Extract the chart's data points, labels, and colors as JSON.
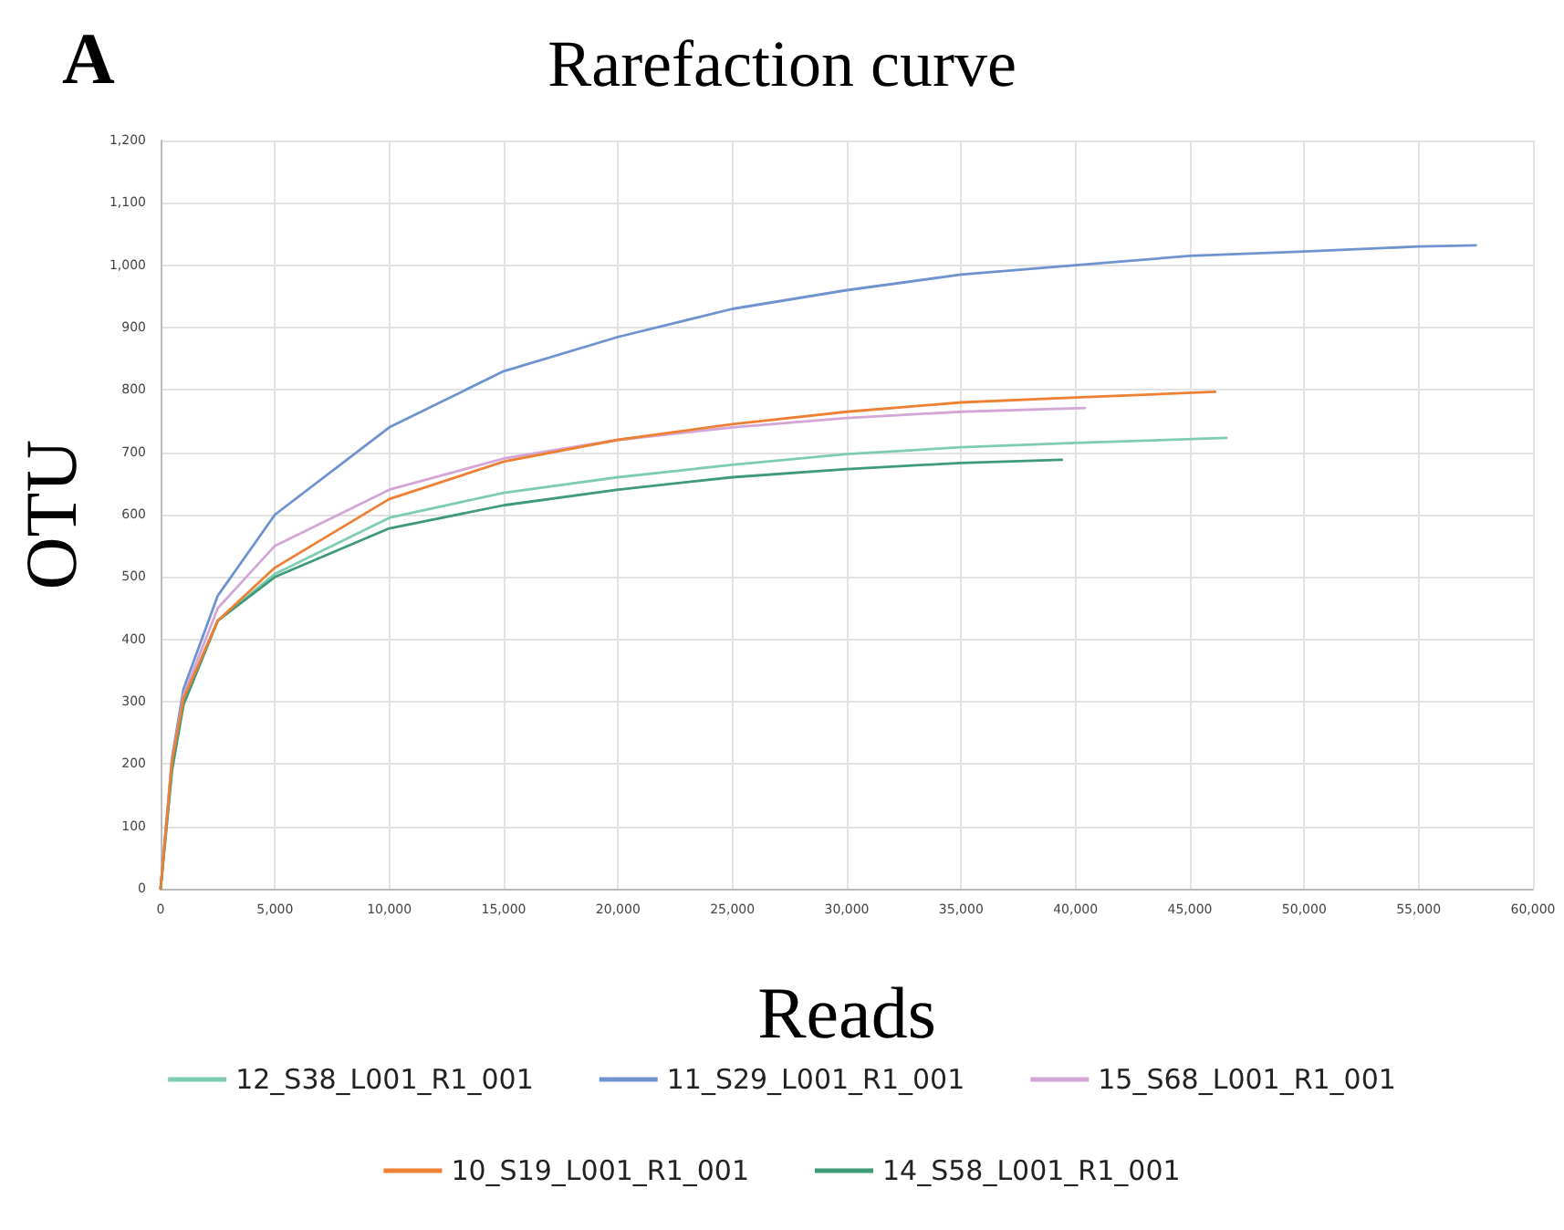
{
  "chart_data": {
    "type": "line",
    "title": "Rarefaction curve",
    "xlabel": "Reads",
    "ylabel": "OTU",
    "annotations": [
      "A"
    ],
    "xlim": [
      0,
      60000
    ],
    "xticks": [
      0,
      {
        "value": 5000,
        "label": "5,000"
      },
      {
        "value": 10000,
        "label": "10,000"
      },
      {
        "value": 15000,
        "label": "15,000"
      },
      {
        "value": 20000,
        "label": "20,000"
      },
      {
        "value": 25000,
        "label": "25,000"
      },
      {
        "value": 30000,
        "label": "30,000"
      },
      {
        "value": 35000,
        "label": "35,000"
      },
      {
        "value": 40000,
        "label": "40,000"
      },
      {
        "value": 45000,
        "label": "45,000"
      },
      {
        "value": 50000,
        "label": "50,000"
      },
      {
        "value": 55000,
        "label": "55,000"
      },
      {
        "value": 60000,
        "label": "60,000"
      }
    ],
    "ylim": [
      0,
      1200
    ],
    "yticks": [
      0,
      100,
      200,
      300,
      400,
      500,
      600,
      700,
      800,
      900,
      {
        "value": 1000,
        "label": "1,000"
      },
      {
        "value": 1100,
        "label": "1,100"
      },
      {
        "value": 1200,
        "label": "1,200"
      }
    ],
    "grid": true,
    "legend": "bottom",
    "marker": "none",
    "line_style": "solid",
    "series": [
      {
        "name": "12_S38_L001_R1_001",
        "color": "#7fcdb0",
        "x": [
          0,
          500,
          1000,
          2500,
          5000,
          10000,
          15000,
          20000,
          25000,
          30000,
          35000,
          40000,
          46600
        ],
        "values": [
          0,
          195,
          300,
          430,
          505,
          595,
          635,
          660,
          680,
          697,
          708,
          715,
          723
        ]
      },
      {
        "name": "11_S29_L001_R1_001",
        "color": "#6f93cf",
        "x": [
          0,
          500,
          1000,
          2500,
          5000,
          10000,
          15000,
          20000,
          25000,
          30000,
          35000,
          40000,
          45000,
          50000,
          55000,
          57500
        ],
        "values": [
          0,
          210,
          320,
          470,
          600,
          740,
          830,
          885,
          930,
          960,
          985,
          1000,
          1015,
          1022,
          1030,
          1032
        ]
      },
      {
        "name": "15_S68_L001_R1_001",
        "color": "#d4a6d8",
        "x": [
          0,
          500,
          1000,
          2500,
          5000,
          10000,
          15000,
          20000,
          25000,
          30000,
          35000,
          40400
        ],
        "values": [
          0,
          205,
          310,
          450,
          550,
          640,
          690,
          720,
          740,
          755,
          765,
          771
        ]
      },
      {
        "name": "10_S19_L001_R1_001",
        "color": "#ee8034",
        "x": [
          0,
          500,
          1000,
          2500,
          5000,
          10000,
          15000,
          20000,
          25000,
          30000,
          35000,
          40000,
          46100
        ],
        "values": [
          0,
          205,
          305,
          430,
          515,
          625,
          685,
          720,
          745,
          765,
          780,
          788,
          797
        ]
      },
      {
        "name": "14_S58_L001_R1_001",
        "color": "#3f9a78",
        "x": [
          0,
          500,
          1000,
          2500,
          5000,
          10000,
          15000,
          20000,
          25000,
          30000,
          35000,
          39400
        ],
        "values": [
          0,
          190,
          295,
          430,
          500,
          578,
          615,
          640,
          660,
          673,
          683,
          688
        ]
      }
    ]
  }
}
